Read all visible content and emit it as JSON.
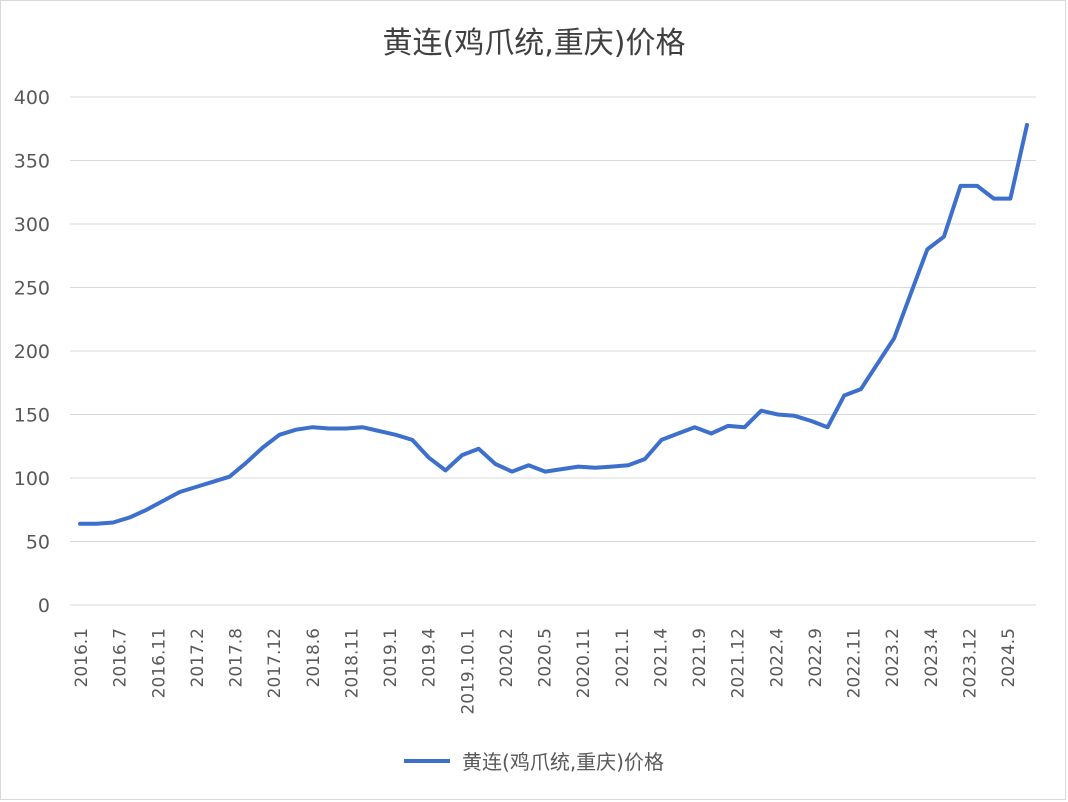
{
  "chart_data": {
    "type": "line",
    "title": "黄连(鸡爪统,重庆)价格",
    "xlabel": "",
    "ylabel": "",
    "ylim": [
      0,
      400
    ],
    "yticks": [
      0,
      50,
      100,
      150,
      200,
      250,
      300,
      350,
      400
    ],
    "grid": true,
    "legend": "bottom",
    "x_tick_labels": [
      "2016.1",
      "2016.7",
      "2016.11",
      "2017.2",
      "2017.8",
      "2017.12",
      "2018.6",
      "2018.11",
      "2019.1",
      "2019.4",
      "2019.10.1",
      "2020.2",
      "2020.5",
      "2020.11",
      "2021.1",
      "2021.4",
      "2021.9",
      "2021.12",
      "2022.4",
      "2022.9",
      "2022.11",
      "2023.2",
      "2023.4",
      "2023.12",
      "2024.5"
    ],
    "series": [
      {
        "name": "黄连(鸡爪统,重庆)价格",
        "color": "#3d6fcc",
        "values": [
          64,
          64,
          65,
          69,
          75,
          82,
          89,
          93,
          97,
          101,
          112,
          124,
          134,
          138,
          140,
          139,
          139,
          140,
          137,
          134,
          130,
          116,
          106,
          118,
          123,
          111,
          105,
          110,
          105,
          107,
          109,
          108,
          109,
          110,
          115,
          130,
          135,
          140,
          135,
          141,
          140,
          153,
          150,
          149,
          145,
          140,
          165,
          170,
          190,
          210,
          245,
          280,
          290,
          330,
          330,
          320,
          320,
          378
        ]
      }
    ]
  }
}
